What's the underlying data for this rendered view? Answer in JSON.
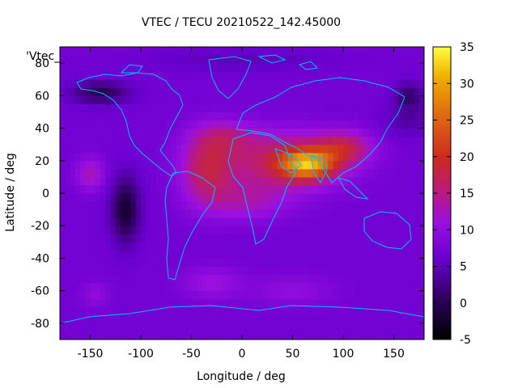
{
  "chart_data": {
    "type": "heatmap",
    "title": "VTEC / TECU 20210522_142.45000",
    "xlabel": "Longitude / deg",
    "ylabel": "Latitude / deg",
    "key_label": "'Vtec_",
    "xlim": [
      -180,
      180
    ],
    "ylim": [
      -90,
      90
    ],
    "x_ticks": [
      -150,
      -100,
      -50,
      0,
      50,
      100,
      150
    ],
    "y_ticks": [
      -80,
      -60,
      -40,
      -20,
      0,
      20,
      40,
      60,
      80
    ],
    "colorbar": {
      "min": -5,
      "max": 35,
      "ticks": [
        -5,
        0,
        5,
        10,
        15,
        20,
        25,
        30,
        35
      ]
    },
    "background_level": 7,
    "features": [
      {
        "lon": 65,
        "lat": 18,
        "slon": 26,
        "slat": 9,
        "amp": 17
      },
      {
        "lon": 40,
        "lat": 20,
        "slon": 60,
        "slat": 18,
        "amp": 10
      },
      {
        "lon": 100,
        "lat": 28,
        "slon": 28,
        "slat": 10,
        "amp": 9
      },
      {
        "lon": -35,
        "lat": 15,
        "slon": 26,
        "slat": 22,
        "amp": 9
      },
      {
        "lon": -15,
        "lat": 35,
        "slon": 30,
        "slat": 10,
        "amp": 5
      },
      {
        "lon": 5,
        "lat": -5,
        "slon": 40,
        "slat": 12,
        "amp": 5
      },
      {
        "lon": -150,
        "lat": 12,
        "slon": 14,
        "slat": 10,
        "amp": 6
      },
      {
        "lon": -30,
        "lat": -55,
        "slon": 30,
        "slat": 10,
        "amp": 4
      },
      {
        "lon": -145,
        "lat": -62,
        "slon": 14,
        "slat": 8,
        "amp": 3
      },
      {
        "lon": 50,
        "lat": -60,
        "slon": 40,
        "slat": 10,
        "amp": 3
      },
      {
        "lon": -115,
        "lat": -10,
        "slon": 14,
        "slat": 20,
        "amp": -9
      },
      {
        "lon": -140,
        "lat": 62,
        "slon": 28,
        "slat": 7,
        "amp": -7
      },
      {
        "lon": 165,
        "lat": 60,
        "slon": 14,
        "slat": 8,
        "amp": -6
      },
      {
        "lon": 165,
        "lat": 45,
        "slon": 25,
        "slat": 10,
        "amp": -3
      },
      {
        "lon": 0,
        "lat": 82,
        "slon": 90,
        "slat": 6,
        "amp": -2
      }
    ]
  }
}
